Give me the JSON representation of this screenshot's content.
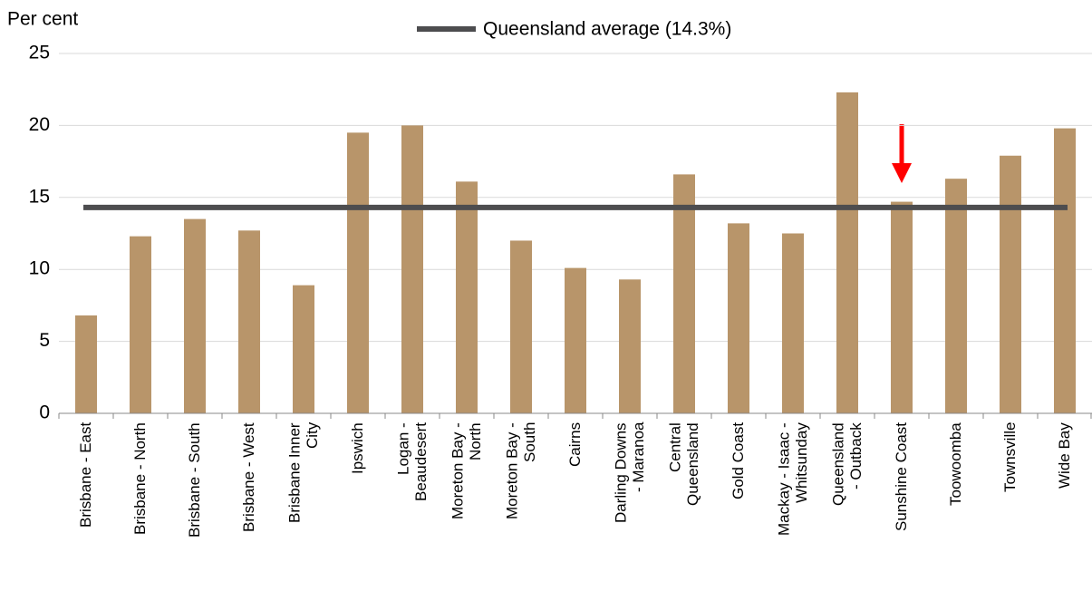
{
  "chart_data": {
    "type": "bar",
    "y_label": "Per cent",
    "categories": [
      "Brisbane - East",
      "Brisbane - North",
      "Brisbane - South",
      "Brisbane - West",
      "Brisbane Inner\nCity",
      "Ipswich",
      "Logan -\nBeaudesert",
      "Moreton Bay -\nNorth",
      "Moreton Bay -\nSouth",
      "Cairns",
      "Darling Downs\n- Maranoa",
      "Central\nQueensland",
      "Gold Coast",
      "Mackay - Isaac -\nWhitsunday",
      "Queensland\n- Outback",
      "Sunshine Coast",
      "Toowoomba",
      "Townsville",
      "Wide Bay"
    ],
    "values": [
      6.8,
      12.3,
      13.5,
      12.7,
      8.9,
      19.5,
      20.0,
      16.1,
      12.0,
      10.1,
      9.3,
      16.6,
      13.2,
      12.5,
      22.3,
      14.7,
      16.3,
      17.9,
      19.8
    ],
    "color": "#b8956a",
    "average": {
      "name": "Queensland average (14.3%)",
      "value": 14.3,
      "color": "#4d4d4f"
    },
    "ylim": [
      0,
      25
    ],
    "yticks": [
      0,
      5,
      10,
      15,
      20,
      25
    ],
    "grid": true
  }
}
